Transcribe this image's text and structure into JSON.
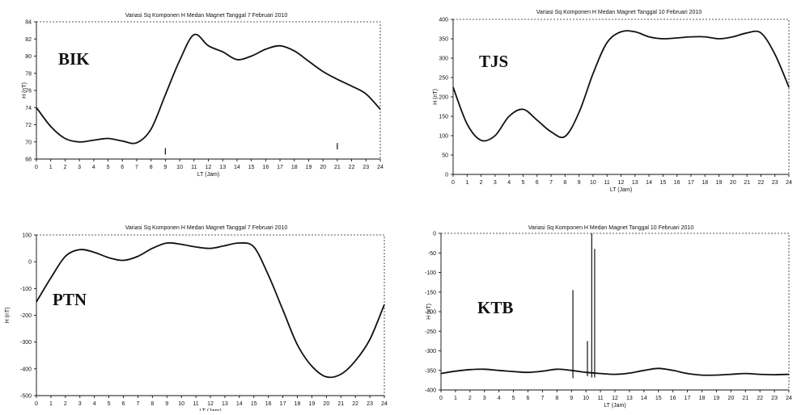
{
  "chart_data": [
    {
      "id": "p1",
      "type": "line",
      "title": "Variasi Sq Komponen H Medan Magnet Tanggal  7 Februari 2010",
      "station": "BIK",
      "xlabel": "LT (Jam)",
      "ylabel": "H (nT)",
      "xlim": [
        0,
        24
      ],
      "ylim": [
        68,
        84
      ],
      "xticks": [
        "0",
        "1",
        "2",
        "3",
        "4",
        "5",
        "6",
        "7",
        "8",
        "9",
        "10",
        "11",
        "12",
        "13",
        "14",
        "15",
        "16",
        "17",
        "18",
        "19",
        "20",
        "21",
        "22",
        "23",
        "24"
      ],
      "yticks": [
        "68",
        "70",
        "72",
        "74",
        "76",
        "78",
        "80",
        "82",
        "84"
      ],
      "x": [
        0,
        1,
        2,
        3,
        4,
        5,
        6,
        7,
        8,
        9,
        10,
        11,
        12,
        13,
        14,
        15,
        16,
        17,
        18,
        19,
        20,
        21,
        22,
        23,
        24
      ],
      "values": [
        74.0,
        71.8,
        70.4,
        70.0,
        70.2,
        70.4,
        70.1,
        69.9,
        71.5,
        75.5,
        79.5,
        82.5,
        81.2,
        80.5,
        79.6,
        80.0,
        80.8,
        81.2,
        80.6,
        79.4,
        78.2,
        77.3,
        76.5,
        75.6,
        73.8
      ],
      "ticks_marks": [
        {
          "x": 9,
          "y": 68.8
        },
        {
          "x": 21,
          "y": 69.4
        }
      ]
    },
    {
      "id": "p2",
      "type": "line",
      "title": "Variasi Sq Komponen H Medan Magnet Tanggal 10 Februari 2010",
      "station": "TJS",
      "xlabel": "LT (Jam)",
      "ylabel": "H (nT)",
      "xlim": [
        0,
        24
      ],
      "ylim": [
        0,
        400
      ],
      "xticks": [
        "0",
        "1",
        "2",
        "3",
        "4",
        "5",
        "6",
        "7",
        "8",
        "9",
        "10",
        "11",
        "12",
        "13",
        "14",
        "15",
        "16",
        "17",
        "18",
        "19",
        "20",
        "21",
        "22",
        "23",
        "24"
      ],
      "yticks": [
        "0",
        "50",
        "100",
        "150",
        "200",
        "250",
        "300",
        "350",
        "400"
      ],
      "x": [
        0,
        1,
        2,
        3,
        4,
        5,
        6,
        7,
        8,
        9,
        10,
        11,
        12,
        13,
        14,
        15,
        16,
        17,
        18,
        19,
        20,
        21,
        22,
        23,
        24
      ],
      "values": [
        225,
        130,
        88,
        100,
        150,
        168,
        140,
        110,
        98,
        160,
        260,
        340,
        368,
        368,
        355,
        350,
        352,
        355,
        355,
        350,
        355,
        365,
        365,
        310,
        225
      ],
      "ticks_marks": []
    },
    {
      "id": "p3",
      "type": "line",
      "title": "Variasi Sq Komponen H Medan Magnet Tanggal  7 Februari 2010",
      "station": "PTN",
      "xlabel": "LT (Jam)",
      "ylabel": "H (nT)",
      "xlim": [
        0,
        24
      ],
      "ylim": [
        -500,
        100
      ],
      "xticks": [
        "0",
        "1",
        "2",
        "3",
        "4",
        "5",
        "6",
        "7",
        "8",
        "9",
        "10",
        "11",
        "12",
        "13",
        "14",
        "15",
        "16",
        "17",
        "18",
        "19",
        "20",
        "21",
        "22",
        "23",
        "24"
      ],
      "yticks": [
        "-500",
        "-400",
        "-300",
        "-200",
        "-100",
        "0",
        "100"
      ],
      "x": [
        0,
        1,
        2,
        3,
        4,
        5,
        6,
        7,
        8,
        9,
        10,
        11,
        12,
        13,
        14,
        15,
        16,
        17,
        18,
        19,
        20,
        21,
        22,
        23,
        24
      ],
      "values": [
        -150,
        -60,
        20,
        45,
        35,
        15,
        5,
        20,
        50,
        70,
        65,
        55,
        50,
        60,
        70,
        55,
        -50,
        -180,
        -310,
        -390,
        -430,
        -420,
        -370,
        -290,
        -160
      ],
      "ticks_marks": []
    },
    {
      "id": "p4",
      "type": "line",
      "title": "Variasi Sq Komponen H Medan Magnet Tanggal 10 Februari 2010",
      "station": "KTB",
      "xlabel": "LT (Jam)",
      "ylabel": "H (nT)",
      "xlim": [
        0,
        24
      ],
      "ylim": [
        -400,
        0
      ],
      "xticks": [
        "0",
        "1",
        "2",
        "3",
        "4",
        "5",
        "6",
        "7",
        "8",
        "9",
        "10",
        "11",
        "12",
        "13",
        "14",
        "15",
        "16",
        "17",
        "18",
        "19",
        "20",
        "21",
        "22",
        "23",
        "24"
      ],
      "yticks": [
        "-400",
        "-350",
        "-300",
        "-250",
        "-200",
        "-150",
        "-100",
        "-50",
        "0"
      ],
      "x": [
        0,
        1,
        2,
        3,
        4,
        5,
        6,
        7,
        8,
        9,
        10,
        11,
        12,
        13,
        14,
        15,
        16,
        17,
        18,
        19,
        20,
        21,
        22,
        23,
        24
      ],
      "values": [
        -358,
        -352,
        -348,
        -347,
        -350,
        -353,
        -355,
        -352,
        -347,
        -350,
        -355,
        -358,
        -360,
        -357,
        -350,
        -345,
        -350,
        -358,
        -362,
        -362,
        -360,
        -358,
        -360,
        -361,
        -360
      ],
      "spikes": [
        {
          "x": 9.1,
          "y_top": -145,
          "y_bottom": -370
        },
        {
          "x": 10.1,
          "y_top": -275,
          "y_bottom": -365
        },
        {
          "x": 10.4,
          "y_top": 0,
          "y_bottom": -368
        },
        {
          "x": 10.6,
          "y_top": -40,
          "y_bottom": -368
        }
      ],
      "ticks_marks": []
    }
  ]
}
